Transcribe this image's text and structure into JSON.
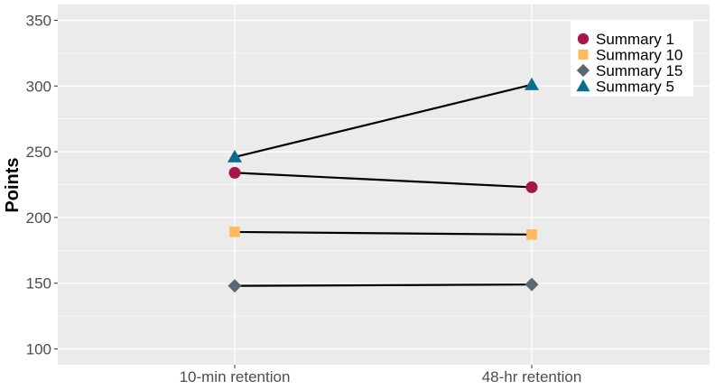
{
  "chart_data": {
    "type": "line",
    "title": "",
    "xlabel": "",
    "ylabel": "Points",
    "categories": [
      "10-min retention",
      "48-hr retention"
    ],
    "ylim": [
      88,
      362
    ],
    "yticks": [
      100,
      150,
      200,
      250,
      300,
      350
    ],
    "grid": true,
    "legend": "top-right",
    "series": [
      {
        "name": "Summary 1",
        "values": [
          234,
          223
        ],
        "color": "#a8154e",
        "marker": "circle"
      },
      {
        "name": "Summary 10",
        "values": [
          189,
          187
        ],
        "color": "#fdbb5d",
        "marker": "square"
      },
      {
        "name": "Summary 15",
        "values": [
          148,
          149
        ],
        "color": "#5c6672",
        "marker": "diamond"
      },
      {
        "name": "Summary 5",
        "values": [
          246,
          301
        ],
        "color": "#0a6c8e",
        "marker": "triangle"
      }
    ],
    "line_color": "#000000",
    "panel_color": "#ebebeb",
    "grid_color": "#ffffff"
  }
}
